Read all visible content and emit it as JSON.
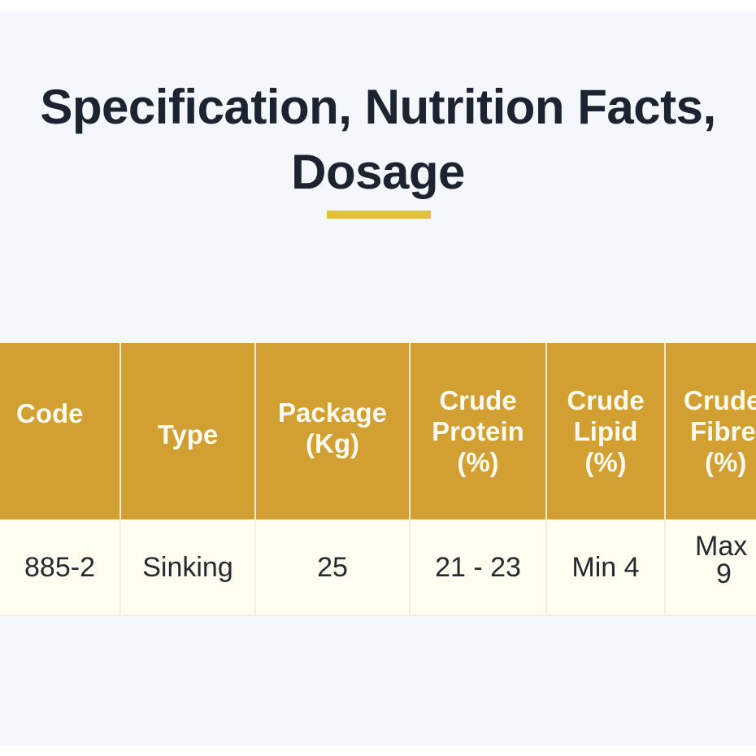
{
  "title": {
    "line1": "Specification, Nutrition Facts,",
    "line2": "Dosage"
  },
  "colors": {
    "page_background": "#f4f7fb",
    "title_text": "#1c2431",
    "underline_accent": "#e3c13a",
    "header_background": "#d29f33",
    "row_background": "#fdfeef"
  },
  "table": {
    "headers": [
      {
        "lines": [
          "Code"
        ]
      },
      {
        "lines": [
          "Type"
        ]
      },
      {
        "lines": [
          "Package",
          "(Kg)"
        ]
      },
      {
        "lines": [
          "Crude",
          "Protein",
          "(%)"
        ]
      },
      {
        "lines": [
          "Crude",
          "Lipid",
          "(%)"
        ]
      },
      {
        "lines": [
          "Crude",
          "Fibre",
          "(%)"
        ]
      }
    ],
    "rows": [
      {
        "code": "885-2",
        "type": "Sinking",
        "package": "25",
        "crude_protein": "21 - 23",
        "crude_lipid": "Min 4",
        "crude_fibre": [
          "Max",
          "9"
        ]
      }
    ]
  }
}
